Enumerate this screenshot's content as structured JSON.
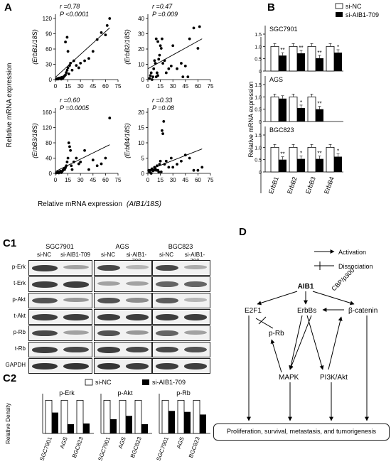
{
  "panels": {
    "A": "A",
    "B": "B",
    "C1": "C1",
    "C2": "C2",
    "D": "D"
  },
  "panel_a": {
    "y_title": "Relative mRNA expression",
    "x_title_prefix": "Relative mRNA expression",
    "x_title_var": "(AIB1/18S)",
    "x_ticks": [
      "0",
      "15",
      "30",
      "45",
      "60",
      "75"
    ],
    "plots": [
      {
        "id": "erbb1",
        "ylabel": "(ErbB1/18S)",
        "r": "r =0.78",
        "p": "P <0.0001",
        "yticks": [
          "0",
          "30",
          "60",
          "90",
          "120"
        ],
        "ymax": 130,
        "points": [
          [
            1,
            1
          ],
          [
            2,
            2
          ],
          [
            3,
            1
          ],
          [
            4,
            3
          ],
          [
            5,
            2
          ],
          [
            6,
            4
          ],
          [
            7,
            1
          ],
          [
            8,
            5
          ],
          [
            9,
            3
          ],
          [
            10,
            6
          ],
          [
            11,
            8
          ],
          [
            12,
            10
          ],
          [
            13,
            15
          ],
          [
            14,
            20
          ],
          [
            15,
            25
          ],
          [
            16,
            12
          ],
          [
            17,
            30
          ],
          [
            18,
            35
          ],
          [
            20,
            20
          ],
          [
            22,
            40
          ],
          [
            25,
            30
          ],
          [
            12,
            80
          ],
          [
            14,
            90
          ],
          [
            15,
            60
          ],
          [
            28,
            25
          ],
          [
            30,
            35
          ],
          [
            35,
            40
          ],
          [
            40,
            45
          ],
          [
            45,
            60
          ],
          [
            50,
            85
          ],
          [
            55,
            100
          ],
          [
            60,
            95
          ],
          [
            62,
            115
          ],
          [
            65,
            130
          ]
        ],
        "fit": [
          [
            0,
            5
          ],
          [
            65,
            110
          ]
        ]
      },
      {
        "id": "erbb2",
        "ylabel": "(ErbB2/18S)",
        "r": "r =0.47",
        "p": "P =0.009",
        "yticks": [
          "0",
          "10",
          "20",
          "30",
          "40"
        ],
        "ymax": 45,
        "points": [
          [
            2,
            1
          ],
          [
            3,
            3
          ],
          [
            4,
            5
          ],
          [
            5,
            0
          ],
          [
            6,
            2
          ],
          [
            7,
            8
          ],
          [
            8,
            14
          ],
          [
            9,
            12
          ],
          [
            10,
            2
          ],
          [
            11,
            5
          ],
          [
            12,
            3
          ],
          [
            13,
            15
          ],
          [
            14,
            18
          ],
          [
            15,
            25
          ],
          [
            16,
            23
          ],
          [
            17,
            30
          ],
          [
            18,
            12
          ],
          [
            20,
            14
          ],
          [
            22,
            5
          ],
          [
            25,
            8
          ],
          [
            28,
            10
          ],
          [
            30,
            25
          ],
          [
            35,
            8
          ],
          [
            40,
            12
          ],
          [
            42,
            2
          ],
          [
            45,
            10
          ],
          [
            48,
            2
          ],
          [
            50,
            30
          ],
          [
            55,
            38
          ],
          [
            60,
            23
          ],
          [
            62,
            39
          ],
          [
            10,
            30
          ],
          [
            12,
            28
          ]
        ],
        "fit": [
          [
            0,
            8
          ],
          [
            65,
            30
          ]
        ]
      },
      {
        "id": "erbb3",
        "ylabel": "(ErbB3/18S)",
        "r": "r =0.60",
        "p": "P =0.0005",
        "yticks": [
          "0",
          "40",
          "80",
          "120",
          "160"
        ],
        "ymax": 160,
        "points": [
          [
            1,
            1
          ],
          [
            2,
            2
          ],
          [
            3,
            4
          ],
          [
            4,
            1
          ],
          [
            5,
            3
          ],
          [
            6,
            6
          ],
          [
            7,
            2
          ],
          [
            8,
            5
          ],
          [
            9,
            8
          ],
          [
            10,
            12
          ],
          [
            11,
            10
          ],
          [
            12,
            15
          ],
          [
            13,
            20
          ],
          [
            14,
            30
          ],
          [
            15,
            40
          ],
          [
            16,
            80
          ],
          [
            17,
            70
          ],
          [
            18,
            60
          ],
          [
            19,
            20
          ],
          [
            20,
            10
          ],
          [
            22,
            30
          ],
          [
            25,
            40
          ],
          [
            28,
            25
          ],
          [
            30,
            30
          ],
          [
            35,
            60
          ],
          [
            40,
            10
          ],
          [
            45,
            35
          ],
          [
            50,
            20
          ],
          [
            55,
            25
          ],
          [
            60,
            40
          ],
          [
            65,
            145
          ]
        ],
        "fit": [
          [
            0,
            5
          ],
          [
            65,
            75
          ]
        ]
      },
      {
        "id": "erbb4",
        "ylabel": "(ErbB4/18S)",
        "r": "r =0.33",
        "p": "P =0.08",
        "yticks": [
          "0",
          "5",
          "10",
          "15",
          "20"
        ],
        "ymax": 20,
        "points": [
          [
            1,
            1
          ],
          [
            2,
            0.5
          ],
          [
            3,
            1
          ],
          [
            4,
            0
          ],
          [
            5,
            1.5
          ],
          [
            6,
            0.8
          ],
          [
            7,
            1
          ],
          [
            8,
            2
          ],
          [
            9,
            1.5
          ],
          [
            10,
            1
          ],
          [
            11,
            2.5
          ],
          [
            12,
            1
          ],
          [
            13,
            0.5
          ],
          [
            14,
            3
          ],
          [
            15,
            4
          ],
          [
            16,
            0.5
          ],
          [
            17,
            14
          ],
          [
            18,
            13
          ],
          [
            19,
            17
          ],
          [
            20,
            3
          ],
          [
            22,
            4
          ],
          [
            25,
            2
          ],
          [
            28,
            5
          ],
          [
            30,
            2
          ],
          [
            35,
            3
          ],
          [
            40,
            4
          ],
          [
            45,
            6
          ],
          [
            50,
            5
          ],
          [
            55,
            1
          ],
          [
            60,
            1
          ],
          [
            65,
            2
          ]
        ],
        "fit": [
          [
            0,
            1
          ],
          [
            65,
            8
          ]
        ]
      }
    ]
  },
  "chart_data": [
    {
      "type": "scatter",
      "title": "",
      "xlabel": "Relative mRNA expression (AIB1/18S)",
      "ylabel": "(ErbB1/18S)",
      "annotations": [
        "r =0.78",
        "P <0.0001"
      ],
      "xlim": [
        0,
        75
      ],
      "ylim": [
        0,
        130
      ]
    },
    {
      "type": "scatter",
      "title": "",
      "xlabel": "Relative mRNA expression (AIB1/18S)",
      "ylabel": "(ErbB2/18S)",
      "annotations": [
        "r =0.47",
        "P =0.009"
      ],
      "xlim": [
        0,
        75
      ],
      "ylim": [
        0,
        45
      ]
    },
    {
      "type": "scatter",
      "title": "",
      "xlabel": "Relative mRNA expression (AIB1/18S)",
      "ylabel": "(ErbB3/18S)",
      "annotations": [
        "r =0.60",
        "P =0.0005"
      ],
      "xlim": [
        0,
        75
      ],
      "ylim": [
        0,
        160
      ]
    },
    {
      "type": "scatter",
      "title": "",
      "xlabel": "Relative mRNA expression (AIB1/18S)",
      "ylabel": "(ErbB4/18S)",
      "annotations": [
        "r =0.33",
        "P =0.08"
      ],
      "xlim": [
        0,
        75
      ],
      "ylim": [
        0,
        20
      ]
    },
    {
      "type": "bar",
      "title": "",
      "ylabel": "Relative mRNA expression",
      "categories": [
        "ErbB1",
        "ErbB2",
        "ErbB3",
        "ErbB4"
      ],
      "panels": [
        {
          "name": "SGC7901",
          "series": [
            {
              "name": "si-NC",
              "values": [
                1.0,
                1.0,
                1.0,
                1.0
              ]
            },
            {
              "name": "si-AIB1-709",
              "values": [
                0.63,
                0.72,
                0.52,
                0.75
              ]
            }
          ],
          "significance": [
            "**",
            "**",
            "**",
            "*"
          ]
        },
        {
          "name": "AGS",
          "series": [
            {
              "name": "si-NC",
              "values": [
                1.0,
                1.0,
                1.0,
                null
              ]
            },
            {
              "name": "si-AIB1-709",
              "values": [
                0.93,
                0.55,
                0.5,
                null
              ]
            }
          ],
          "significance": [
            "",
            "*",
            "**",
            ""
          ]
        },
        {
          "name": "BGC823",
          "series": [
            {
              "name": "si-NC",
              "values": [
                1.0,
                1.0,
                1.0,
                1.0
              ]
            },
            {
              "name": "si-AIB1-709",
              "values": [
                0.5,
                0.53,
                0.53,
                0.62
              ]
            }
          ],
          "significance": [
            "**",
            "*",
            "**",
            "*"
          ]
        }
      ],
      "yticks": [
        "0",
        "0.5",
        "1.0",
        "1.5"
      ],
      "ylim": [
        0,
        1.5
      ],
      "legend": "top-right"
    },
    {
      "type": "bar",
      "title": "",
      "ylabel": "Relative Density",
      "categories": [
        "SGC7901",
        "AGS",
        "BGC823"
      ],
      "panels": [
        {
          "name": "p-Erk",
          "series": [
            {
              "name": "si-NC",
              "values": [
                1,
                1,
                1
              ]
            },
            {
              "name": "si-AIB1-709",
              "values": [
                0.63,
                0.28,
                0.3
              ]
            }
          ]
        },
        {
          "name": "p-Akt",
          "series": [
            {
              "name": "si-NC",
              "values": [
                1,
                1,
                1
              ]
            },
            {
              "name": "si-AIB1-709",
              "values": [
                0.43,
                0.53,
                0.28
              ]
            }
          ]
        },
        {
          "name": "p-Rb",
          "series": [
            {
              "name": "si-NC",
              "values": [
                1,
                1,
                1
              ]
            },
            {
              "name": "si-AIB1-709",
              "values": [
                0.68,
                0.65,
                0.57
              ]
            }
          ]
        }
      ],
      "ylim": [
        0,
        1.2
      ],
      "legend": "top"
    }
  ],
  "panel_b": {
    "legend": {
      "nc": "si-NC",
      "si": "si-AIB1-709"
    },
    "ylabel": "Relative mRNA expression",
    "yticks": [
      "0",
      "0.5",
      "1.0",
      "1.5"
    ],
    "categories": [
      "ErbB1",
      "ErbB2",
      "ErbB3",
      "ErbB4"
    ]
  },
  "panel_c1": {
    "lines": [
      "SGC7901",
      "AGS",
      "BGC823"
    ],
    "conditions": [
      "si-NC",
      "si-AIB1-709"
    ],
    "proteins": [
      "p-Erk",
      "t-Erk",
      "p-Akt",
      "t-Akt",
      "p-Rb",
      "t-Rb",
      "GAPDH"
    ]
  },
  "panel_c2": {
    "legend": {
      "nc": "si-NC",
      "si": "si-AIB1-709"
    },
    "ylabel": "Relative Density"
  },
  "panel_d": {
    "legend_activation": "Activation",
    "legend_dissociation": "Dissociation",
    "nodes": {
      "aib1": "AIB1",
      "e2f1": "E2F1",
      "erbbs": "ErbBs",
      "catenin": "β-catenin",
      "prb": "p-Rb",
      "mapk": "MAPK",
      "pi3k": "PI3K/Akt",
      "cbp": "CBP/p300"
    },
    "result": "Proliferation, survival, metastasis, and tumorigenesis"
  }
}
